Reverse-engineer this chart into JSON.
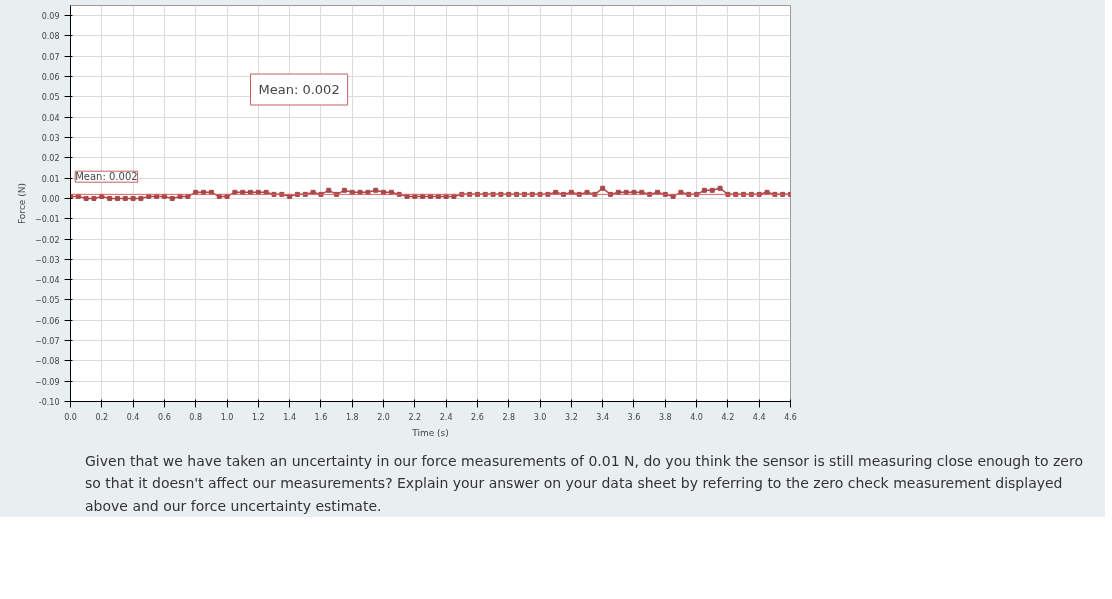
{
  "chart_data": {
    "type": "line",
    "xlabel": "Time (s)",
    "ylabel": "Force (N)",
    "x": [
      0.0,
      0.05,
      0.1,
      0.15,
      0.2,
      0.25,
      0.3,
      0.35,
      0.4,
      0.45,
      0.5,
      0.55,
      0.6,
      0.65,
      0.7,
      0.75,
      0.8,
      0.85,
      0.9,
      0.95,
      1.0,
      1.05,
      1.1,
      1.15,
      1.2,
      1.25,
      1.3,
      1.35,
      1.4,
      1.45,
      1.5,
      1.55,
      1.6,
      1.65,
      1.7,
      1.75,
      1.8,
      1.85,
      1.9,
      1.95,
      2.0,
      2.05,
      2.1,
      2.15,
      2.2,
      2.25,
      2.3,
      2.35,
      2.4,
      2.45,
      2.5,
      2.55,
      2.6,
      2.65,
      2.7,
      2.75,
      2.8,
      2.85,
      2.9,
      2.95,
      3.0,
      3.05,
      3.1,
      3.15,
      3.2,
      3.25,
      3.3,
      3.35,
      3.4,
      3.45,
      3.5,
      3.55,
      3.6,
      3.65,
      3.7,
      3.75,
      3.8,
      3.85,
      3.9,
      3.95,
      4.0,
      4.05,
      4.1,
      4.15,
      4.2,
      4.25,
      4.3,
      4.35,
      4.4,
      4.45,
      4.5,
      4.55,
      4.6
    ],
    "series": [
      {
        "color": "#a8484a",
        "values": [
          0.001,
          0.001,
          0.0,
          0.0,
          0.001,
          0.0,
          0.0,
          0.0,
          0.0,
          0.0,
          0.001,
          0.001,
          0.001,
          0.0,
          0.001,
          0.001,
          0.003,
          0.003,
          0.003,
          0.001,
          0.001,
          0.003,
          0.003,
          0.003,
          0.003,
          0.003,
          0.002,
          0.002,
          0.001,
          0.002,
          0.002,
          0.003,
          0.002,
          0.004,
          0.002,
          0.004,
          0.003,
          0.003,
          0.003,
          0.004,
          0.003,
          0.003,
          0.002,
          0.001,
          0.001,
          0.001,
          0.001,
          0.001,
          0.001,
          0.001,
          0.002,
          0.002,
          0.002,
          0.002,
          0.002,
          0.002,
          0.002,
          0.002,
          0.002,
          0.002,
          0.002,
          0.002,
          0.003,
          0.002,
          0.003,
          0.002,
          0.003,
          0.002,
          0.005,
          0.002,
          0.003,
          0.003,
          0.003,
          0.003,
          0.002,
          0.003,
          0.002,
          0.001,
          0.003,
          0.002,
          0.002,
          0.004,
          0.004,
          0.005,
          0.002,
          0.002,
          0.002,
          0.002,
          0.002,
          0.003,
          0.002,
          0.002,
          0.002
        ]
      }
    ],
    "marker": "square",
    "line_style": "solid",
    "grid": true,
    "xlim": [
      0,
      4.6
    ],
    "ylim": [
      -0.1,
      0.095
    ],
    "xticks": [
      {
        "value": 0,
        "label": "0.0"
      },
      0.2,
      0.4,
      0.6,
      0.8,
      {
        "value": 1,
        "label": "1.0"
      },
      1.2,
      1.4,
      1.6,
      1.8,
      {
        "value": 2,
        "label": "2.0"
      },
      2.2,
      2.4,
      2.6,
      2.8,
      {
        "value": 3,
        "label": "3.0"
      },
      3.2,
      3.4,
      3.6,
      3.8,
      {
        "value": 4,
        "label": "4.0"
      },
      4.2,
      4.4,
      4.6
    ],
    "yticks": [
      {
        "value": -0.1,
        "label": "-0.10"
      },
      -0.09,
      -0.08,
      -0.07,
      -0.06,
      -0.05,
      -0.04,
      -0.03,
      -0.02,
      -0.01,
      {
        "value": 0,
        "label": "0.00"
      },
      0.01,
      0.02,
      0.03,
      0.04,
      0.05,
      0.06,
      0.07,
      0.08,
      0.09
    ],
    "ref_lines": [
      {
        "axis": "y",
        "value": 0.002,
        "label": "Mean: 0.002",
        "color": "#e06060"
      }
    ],
    "annotations": [
      "Mean: 0.002",
      "Given that we have taken an uncertainty in our force measurements of 0.01 N, do you think the sensor is still measuring close enough to zero so that it doesn't affect our measurements? Explain your answer on your data sheet by referring to the zero check measurement displayed above and our force uncertainty estimate."
    ]
  }
}
